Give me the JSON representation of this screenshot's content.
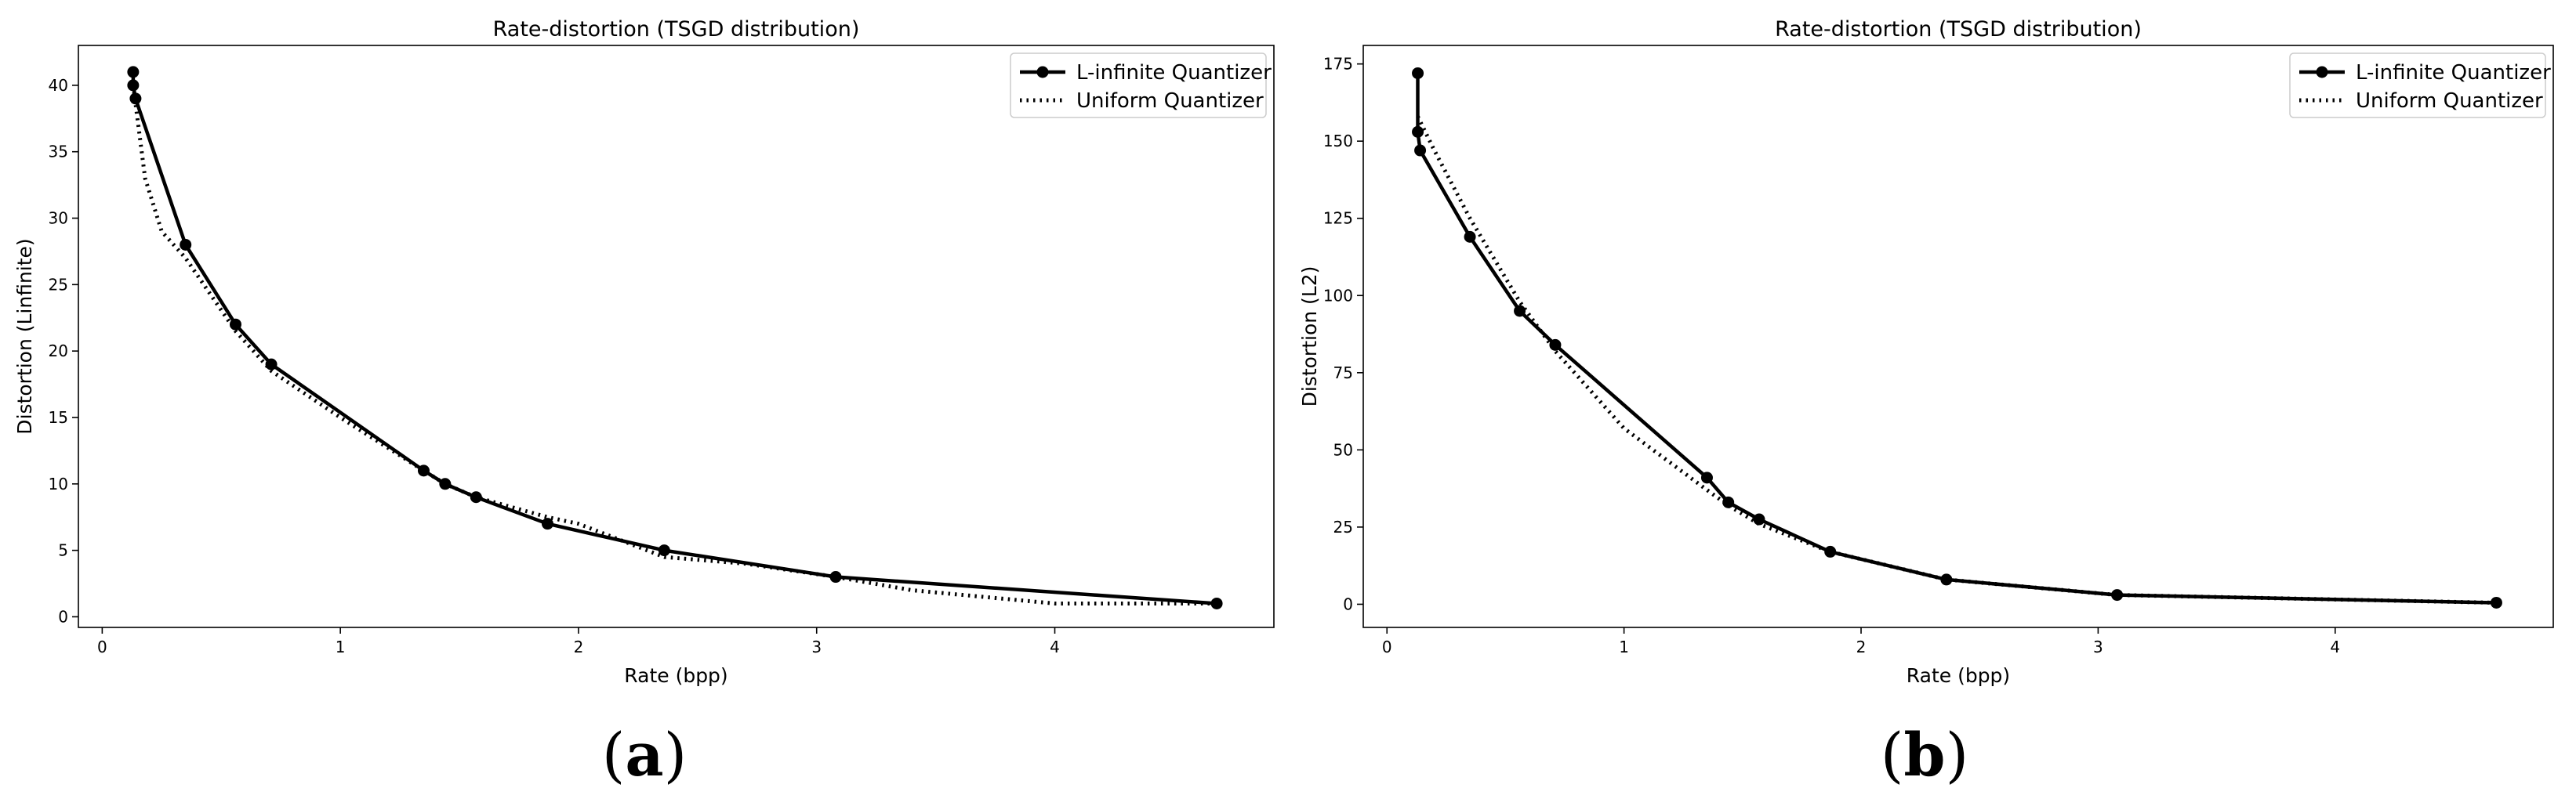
{
  "colors": {
    "line": "#000000",
    "background": "#ffffff"
  },
  "chart_data": [
    {
      "type": "line",
      "panel_label": "(a)",
      "panel_letter": "a",
      "title": "Rate-distortion (TSGD distribution)",
      "xlabel": "Rate (bpp)",
      "ylabel": "Distortion (Linfinite)",
      "xlim": [
        -0.1,
        4.92
      ],
      "ylim": [
        -0.8,
        43.0
      ],
      "xticks": [
        0,
        1,
        2,
        3,
        4
      ],
      "yticks": [
        0,
        5,
        10,
        15,
        20,
        25,
        30,
        35,
        40
      ],
      "legend_position": "top-right",
      "grid": false,
      "series": [
        {
          "name": "L-infinite Quantizer",
          "style": "solid-markers",
          "x": [
            0.13,
            0.13,
            0.14,
            0.35,
            0.56,
            0.71,
            1.35,
            1.44,
            1.57,
            1.87,
            2.36,
            3.08,
            4.68
          ],
          "y": [
            41,
            40,
            39,
            28,
            22,
            19,
            11,
            10,
            9,
            7,
            5,
            3,
            1
          ]
        },
        {
          "name": "Uniform Quantizer",
          "style": "dotted",
          "x": [
            0.13,
            0.18,
            0.25,
            0.35,
            0.56,
            0.71,
            1.0,
            1.35,
            1.44,
            1.57,
            1.87,
            2.0,
            2.36,
            2.7,
            3.08,
            3.4,
            4.0,
            4.68
          ],
          "y": [
            40,
            33,
            29,
            27,
            21.5,
            18.5,
            15,
            11,
            10,
            9,
            7.5,
            7,
            4.5,
            4,
            3,
            2,
            1,
            1
          ]
        }
      ]
    },
    {
      "type": "line",
      "panel_label": "(b)",
      "panel_letter": "b",
      "title": "Rate-distortion (TSGD distribution)",
      "xlabel": "Rate (bpp)",
      "ylabel": "Distortion (L2)",
      "xlim": [
        -0.1,
        4.92
      ],
      "ylim": [
        -7.5,
        181.0
      ],
      "xticks": [
        0,
        1,
        2,
        3,
        4
      ],
      "yticks": [
        0,
        25,
        50,
        75,
        100,
        125,
        150,
        175
      ],
      "legend_position": "top-right",
      "grid": false,
      "series": [
        {
          "name": "L-infinite Quantizer",
          "style": "solid-markers",
          "x": [
            0.13,
            0.13,
            0.14,
            0.35,
            0.56,
            0.71,
            1.35,
            1.44,
            1.57,
            1.87,
            2.36,
            3.08,
            4.68
          ],
          "y": [
            172,
            153,
            147,
            119,
            95,
            84,
            41,
            33,
            27.5,
            17,
            8,
            3,
            0.5
          ]
        },
        {
          "name": "Uniform Quantizer",
          "style": "dotted",
          "x": [
            0.13,
            0.2,
            0.35,
            0.56,
            0.71,
            1.0,
            1.35,
            1.44,
            1.57,
            1.87,
            2.36,
            3.08,
            4.68
          ],
          "y": [
            158,
            147,
            125,
            98,
            82,
            57,
            37,
            32,
            26,
            17,
            8,
            3,
            0.5
          ]
        }
      ]
    }
  ]
}
